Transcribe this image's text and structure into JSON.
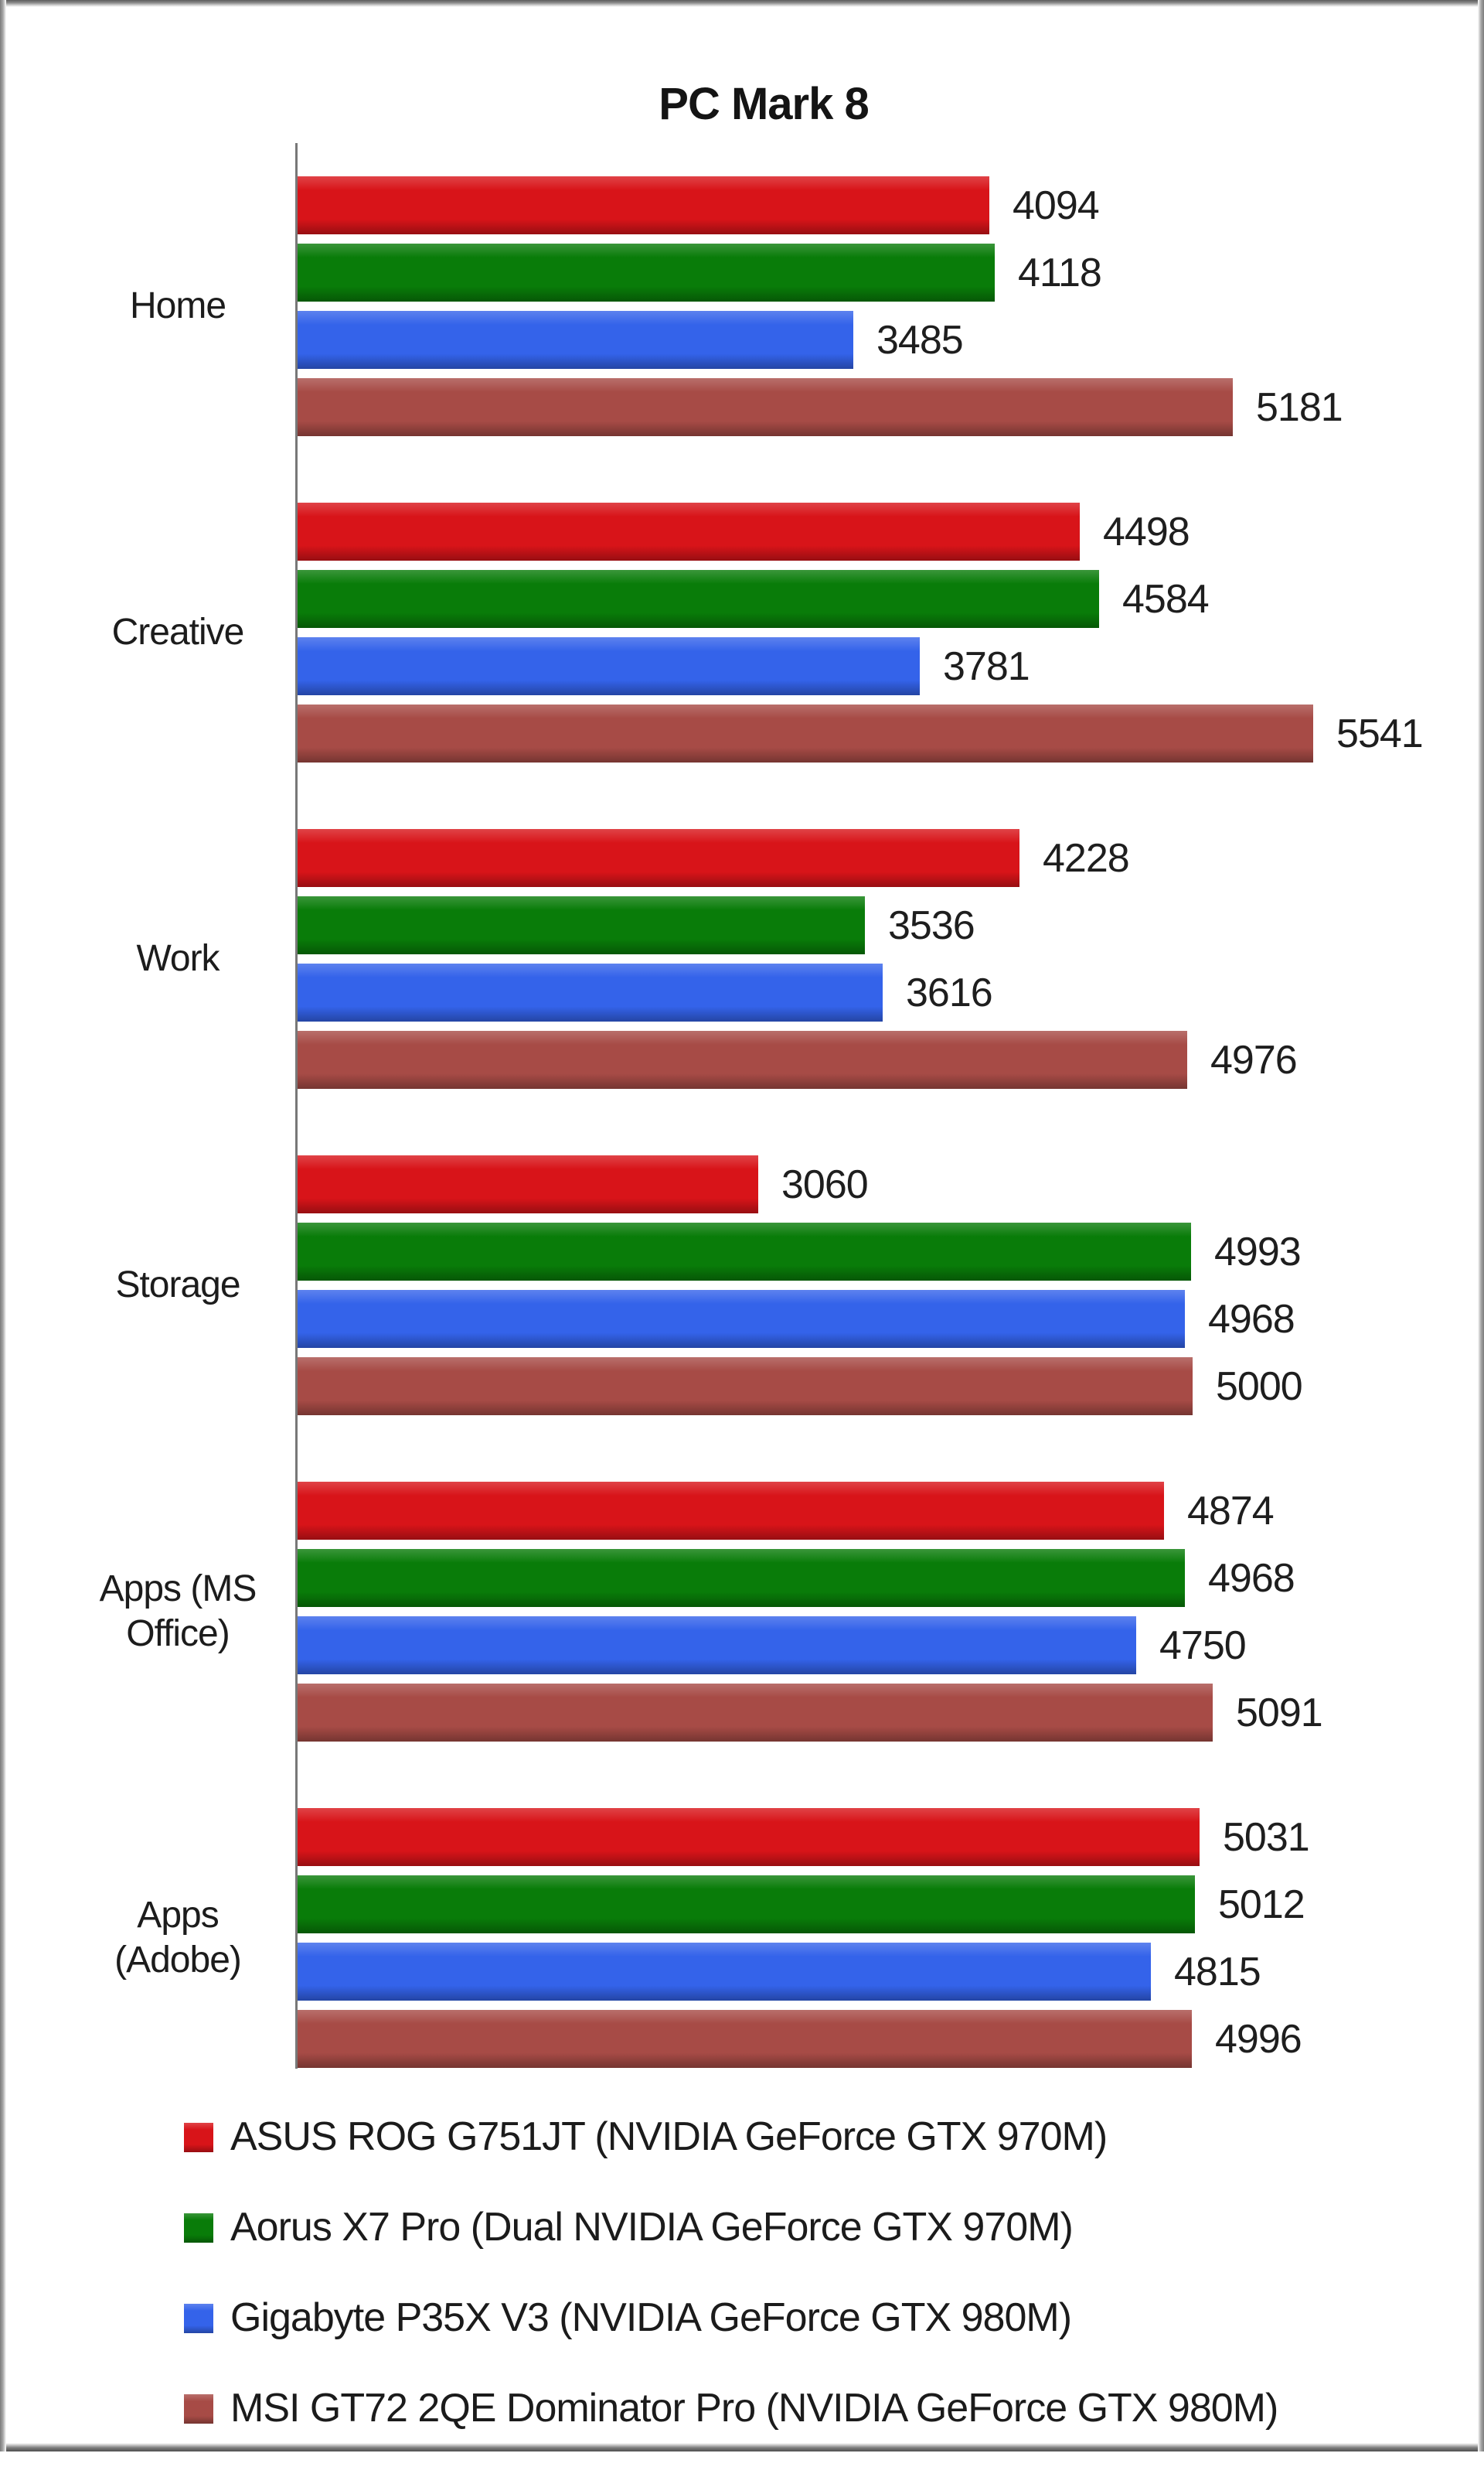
{
  "chart_data": {
    "type": "bar",
    "orientation": "horizontal",
    "title": "PC Mark 8",
    "categories": [
      "Home",
      "Creative",
      "Work",
      "Storage",
      "Apps (MS Office)",
      "Apps (Adobe)"
    ],
    "category_display_lines": [
      [
        "Home"
      ],
      [
        "Creative"
      ],
      [
        "Work"
      ],
      [
        "Storage"
      ],
      [
        "Apps (MS",
        "Office)"
      ],
      [
        "Apps",
        "(Adobe)"
      ]
    ],
    "series": [
      {
        "name": "ASUS ROG G751JT (NVIDIA GeForce GTX 970M)",
        "color": "#d81419",
        "values": [
          4094,
          4498,
          4228,
          3060,
          4874,
          5031
        ]
      },
      {
        "name": "Aorus X7 Pro (Dual NVIDIA GeForce GTX 970M)",
        "color": "#097c09",
        "values": [
          4118,
          4584,
          3536,
          4993,
          4968,
          5012
        ]
      },
      {
        "name": "Gigabyte P35X V3 (NVIDIA GeForce GTX 980M)",
        "color": "#3463ea",
        "values": [
          3485,
          3781,
          3616,
          4968,
          4750,
          4815
        ]
      },
      {
        "name": "MSI GT72 2QE Dominator Pro (NVIDIA GeForce GTX 980M)",
        "color": "#a74b46",
        "values": [
          5181,
          5541,
          4976,
          5000,
          5091,
          4996
        ]
      }
    ],
    "value_labels_shown": true,
    "axis_tick_labels_shown": false,
    "xlim": [
      1000,
      6200
    ],
    "grid": false,
    "legend_position": "bottom"
  },
  "colors": {
    "background": "#ffffff",
    "axis_line": "#787878",
    "text": "#1c1c1c",
    "frame_border": "#6f6f6f"
  }
}
